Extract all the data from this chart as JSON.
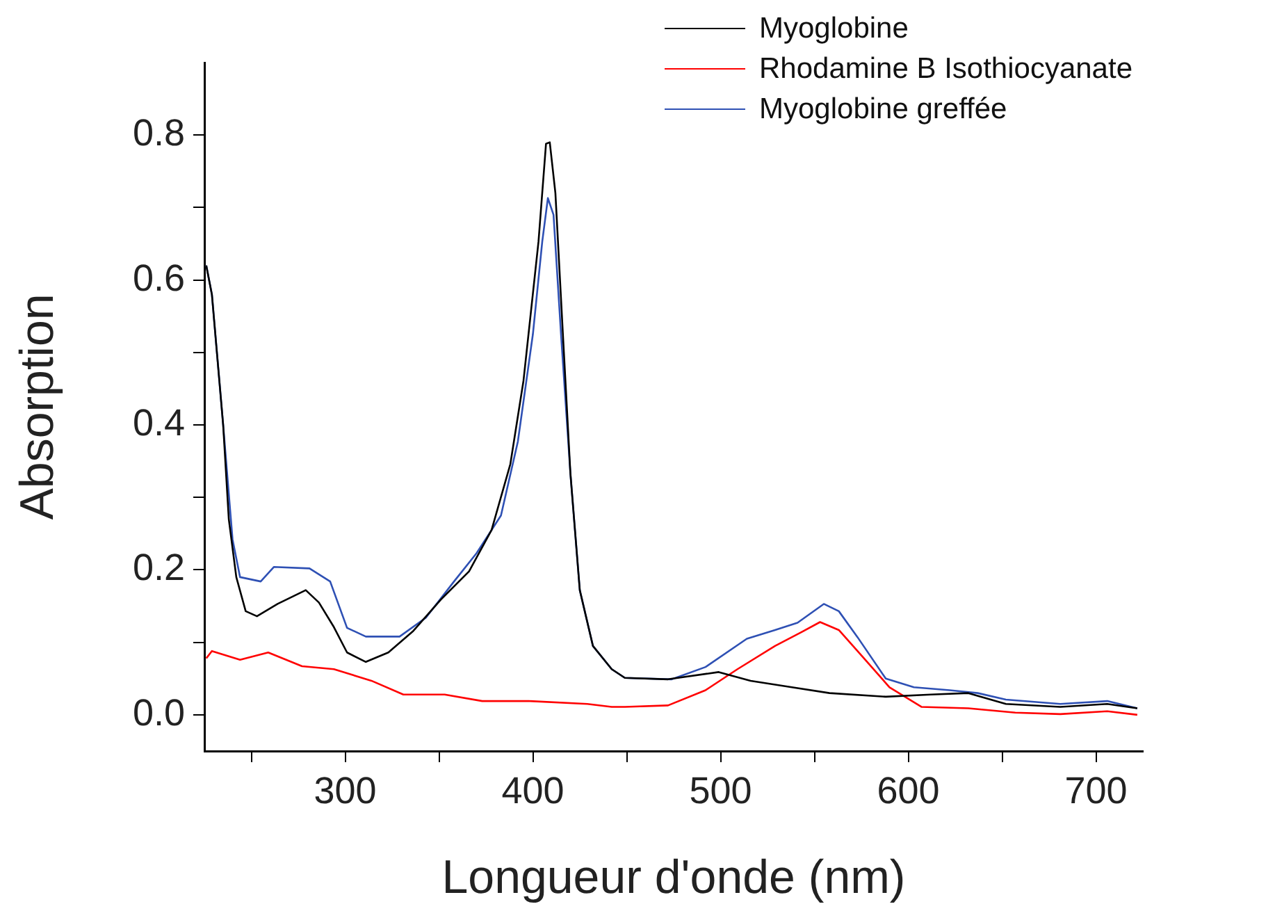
{
  "chart_data": {
    "type": "line",
    "xlabel": "Longueur d'onde (nm)",
    "ylabel": "Absorption",
    "legend": "top right",
    "marker": "none",
    "line_style": "solid",
    "grid": false,
    "xlim": [
      225,
      725
    ],
    "xticks": [
      {
        "value": 250,
        "label": null
      },
      300,
      {
        "value": 350,
        "label": null
      },
      400,
      {
        "value": 450,
        "label": null
      },
      500,
      {
        "value": 550,
        "label": null
      },
      600,
      {
        "value": 650,
        "label": null
      },
      700
    ],
    "ylim": [
      -0.05,
      0.9
    ],
    "yticks": [
      {
        "value": 0,
        "label": "0.0"
      },
      {
        "value": 0.1,
        "label": null
      },
      {
        "value": 0.2,
        "label": "0.2"
      },
      {
        "value": 0.3,
        "label": null
      },
      {
        "value": 0.4,
        "label": "0.4"
      },
      {
        "value": 0.5,
        "label": null
      },
      {
        "value": 0.6,
        "label": "0.6"
      },
      {
        "value": 0.7,
        "label": null
      },
      {
        "value": 0.8,
        "label": "0.8"
      }
    ],
    "series": [
      {
        "name": "Myoglobine",
        "color": "#000000",
        "x": [
          226,
          229,
          235,
          238,
          242,
          247,
          253,
          264,
          279,
          286,
          294,
          301,
          311,
          323,
          336,
          351,
          366,
          378,
          388,
          395,
          403,
          407,
          409,
          412,
          416,
          420,
          425,
          432,
          442,
          449,
          472,
          499,
          516,
          538,
          558,
          588,
          612,
          632,
          652,
          681,
          706,
          722
        ],
        "values": [
          0.62,
          0.58,
          0.4,
          0.27,
          0.19,
          0.143,
          0.136,
          0.153,
          0.172,
          0.155,
          0.121,
          0.086,
          0.073,
          0.086,
          0.115,
          0.159,
          0.198,
          0.255,
          0.346,
          0.461,
          0.653,
          0.788,
          0.79,
          0.72,
          0.525,
          0.333,
          0.172,
          0.095,
          0.063,
          0.051,
          0.049,
          0.059,
          0.047,
          0.038,
          0.03,
          0.025,
          0.028,
          0.03,
          0.015,
          0.011,
          0.015,
          0.009
        ]
      },
      {
        "name": "Rhodamine B Isothiocyanate",
        "color": "#ff0000",
        "x": [
          226,
          229,
          244,
          259,
          277,
          294,
          314,
          331,
          353,
          373,
          398,
          429,
          442,
          449,
          472,
          492,
          509,
          529,
          543,
          553,
          563,
          575,
          590,
          607,
          632,
          657,
          681,
          706,
          722
        ],
        "values": [
          0.078,
          0.088,
          0.076,
          0.086,
          0.067,
          0.063,
          0.047,
          0.028,
          0.028,
          0.019,
          0.019,
          0.015,
          0.011,
          0.011,
          0.013,
          0.034,
          0.063,
          0.095,
          0.114,
          0.128,
          0.117,
          0.082,
          0.038,
          0.011,
          0.009,
          0.003,
          0.001,
          0.005,
          0
        ]
      },
      {
        "name": "Myoglobine greffée",
        "color": "#2e50b4",
        "x": [
          226,
          229,
          235,
          240,
          244,
          255,
          262,
          281,
          292,
          301,
          311,
          329,
          343,
          358,
          370,
          383,
          392,
          400,
          405,
          408,
          411,
          415,
          420,
          425,
          432,
          442,
          449,
          474,
          492,
          514,
          529,
          541,
          555,
          563,
          573,
          588,
          603,
          622,
          637,
          652,
          681,
          706,
          722
        ],
        "values": [
          0.62,
          0.58,
          0.4,
          0.242,
          0.19,
          0.184,
          0.204,
          0.202,
          0.184,
          0.12,
          0.108,
          0.108,
          0.134,
          0.184,
          0.223,
          0.275,
          0.377,
          0.525,
          0.653,
          0.713,
          0.69,
          0.525,
          0.333,
          0.172,
          0.095,
          0.063,
          0.051,
          0.049,
          0.066,
          0.105,
          0.117,
          0.127,
          0.153,
          0.143,
          0.107,
          0.05,
          0.038,
          0.034,
          0.03,
          0.021,
          0.015,
          0.019,
          0.009
        ]
      }
    ]
  }
}
